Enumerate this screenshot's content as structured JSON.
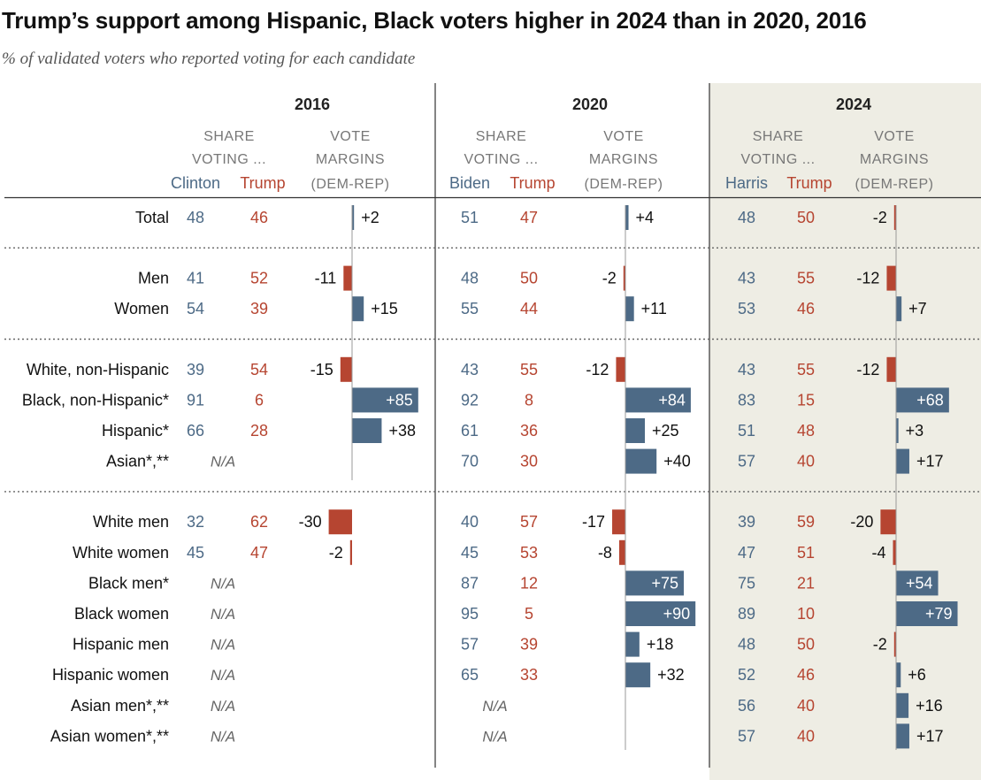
{
  "title": "Trump’s support among Hispanic, Black voters higher in 2024 than in 2020, 2016",
  "subtitle": "% of validated voters who reported voting for each candidate",
  "colors": {
    "dem": "#4d6a86",
    "rep": "#b64531",
    "highlight_bg": "#eeede4",
    "label_gray": "#777777",
    "na_gray": "#666666"
  },
  "header_labels": {
    "share1": "SHARE",
    "share2": "VOTING ...",
    "vote1": "VOTE",
    "vote2": "MARGINS",
    "vote3": "(DEM-REP)"
  },
  "na_label": "N/A",
  "chart_data": {
    "type": "table",
    "years": [
      {
        "year": "2016",
        "dem_candidate": "Clinton",
        "rep_candidate": "Trump",
        "highlighted": false
      },
      {
        "year": "2020",
        "dem_candidate": "Biden",
        "rep_candidate": "Trump",
        "highlighted": false
      },
      {
        "year": "2024",
        "dem_candidate": "Harris",
        "rep_candidate": "Trump",
        "highlighted": true
      }
    ],
    "groups": [
      {
        "rows": [
          {
            "label": "Total",
            "values": [
              {
                "dem": 48,
                "rep": 46,
                "margin": "+2"
              },
              {
                "dem": 51,
                "rep": 47,
                "margin": "+4"
              },
              {
                "dem": 48,
                "rep": 50,
                "margin": "-2"
              }
            ]
          }
        ]
      },
      {
        "rows": [
          {
            "label": "Men",
            "values": [
              {
                "dem": 41,
                "rep": 52,
                "margin": "-11"
              },
              {
                "dem": 48,
                "rep": 50,
                "margin": "-2"
              },
              {
                "dem": 43,
                "rep": 55,
                "margin": "-12"
              }
            ]
          },
          {
            "label": "Women",
            "values": [
              {
                "dem": 54,
                "rep": 39,
                "margin": "+15"
              },
              {
                "dem": 55,
                "rep": 44,
                "margin": "+11"
              },
              {
                "dem": 53,
                "rep": 46,
                "margin": "+7"
              }
            ]
          }
        ]
      },
      {
        "rows": [
          {
            "label": "White, non-Hispanic",
            "values": [
              {
                "dem": 39,
                "rep": 54,
                "margin": "-15"
              },
              {
                "dem": 43,
                "rep": 55,
                "margin": "-12"
              },
              {
                "dem": 43,
                "rep": 55,
                "margin": "-12"
              }
            ]
          },
          {
            "label": "Black, non-Hispanic*",
            "values": [
              {
                "dem": 91,
                "rep": 6,
                "margin": "+85"
              },
              {
                "dem": 92,
                "rep": 8,
                "margin": "+84"
              },
              {
                "dem": 83,
                "rep": 15,
                "margin": "+68"
              }
            ]
          },
          {
            "label": "Hispanic*",
            "values": [
              {
                "dem": 66,
                "rep": 28,
                "margin": "+38"
              },
              {
                "dem": 61,
                "rep": 36,
                "margin": "+25"
              },
              {
                "dem": 51,
                "rep": 48,
                "margin": "+3"
              }
            ]
          },
          {
            "label": "Asian*,**",
            "values": [
              null,
              {
                "dem": 70,
                "rep": 30,
                "margin": "+40"
              },
              {
                "dem": 57,
                "rep": 40,
                "margin": "+17"
              }
            ]
          }
        ]
      },
      {
        "rows": [
          {
            "label": "White men",
            "values": [
              {
                "dem": 32,
                "rep": 62,
                "margin": "-30"
              },
              {
                "dem": 40,
                "rep": 57,
                "margin": "-17"
              },
              {
                "dem": 39,
                "rep": 59,
                "margin": "-20"
              }
            ]
          },
          {
            "label": "White women",
            "values": [
              {
                "dem": 45,
                "rep": 47,
                "margin": "-2"
              },
              {
                "dem": 45,
                "rep": 53,
                "margin": "-8"
              },
              {
                "dem": 47,
                "rep": 51,
                "margin": "-4"
              }
            ]
          },
          {
            "label": "Black men*",
            "values": [
              null,
              {
                "dem": 87,
                "rep": 12,
                "margin": "+75"
              },
              {
                "dem": 75,
                "rep": 21,
                "margin": "+54"
              }
            ]
          },
          {
            "label": "Black women",
            "values": [
              null,
              {
                "dem": 95,
                "rep": 5,
                "margin": "+90"
              },
              {
                "dem": 89,
                "rep": 10,
                "margin": "+79"
              }
            ]
          },
          {
            "label": "Hispanic men",
            "values": [
              null,
              {
                "dem": 57,
                "rep": 39,
                "margin": "+18"
              },
              {
                "dem": 48,
                "rep": 50,
                "margin": "-2"
              }
            ]
          },
          {
            "label": "Hispanic women",
            "values": [
              null,
              {
                "dem": 65,
                "rep": 33,
                "margin": "+32"
              },
              {
                "dem": 52,
                "rep": 46,
                "margin": "+6"
              }
            ]
          },
          {
            "label": "Asian men*,**",
            "values": [
              null,
              null,
              {
                "dem": 56,
                "rep": 40,
                "margin": "+16"
              }
            ]
          },
          {
            "label": "Asian women*,**",
            "values": [
              null,
              null,
              {
                "dem": 57,
                "rep": 40,
                "margin": "+17"
              }
            ]
          }
        ]
      }
    ]
  }
}
